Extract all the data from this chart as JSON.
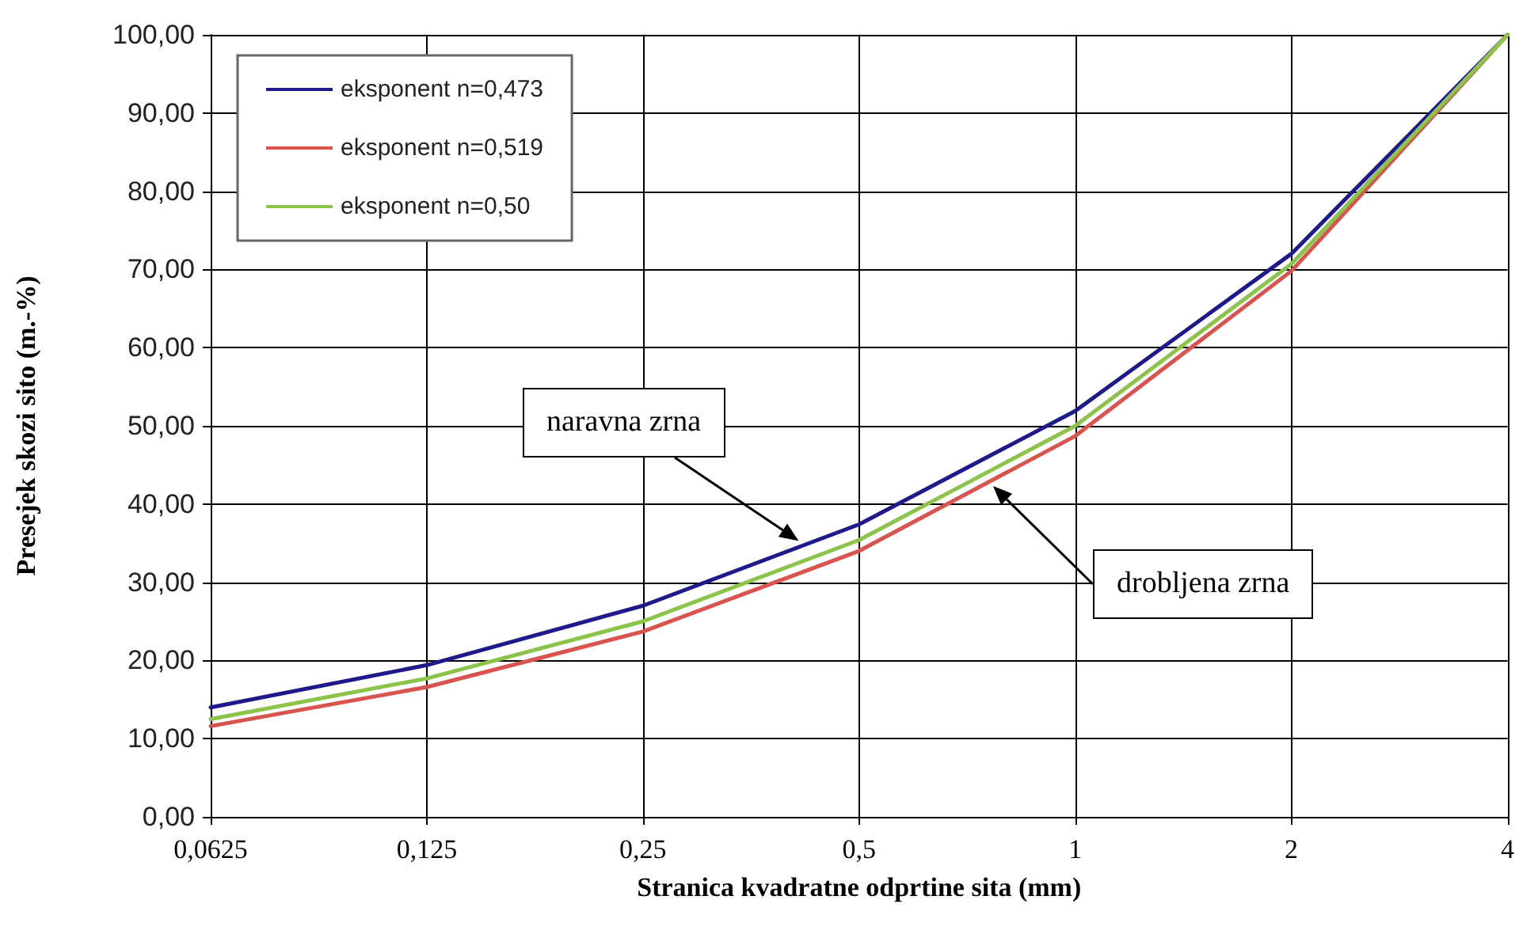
{
  "chart_data": {
    "type": "line",
    "xlabel": "Stranica kvadratne odprtine sita (mm)",
    "ylabel": "Presejek skozi sito (m.-%)",
    "categories": [
      "0,0625",
      "0,125",
      "0,25",
      "0,5",
      "1",
      "2",
      "4"
    ],
    "series": [
      {
        "name": "eksponent n=0,473",
        "color": "#1f1a8c",
        "values": [
          14.0,
          19.4,
          27.0,
          37.4,
          51.9,
          72.0,
          100
        ]
      },
      {
        "name": "eksponent n=0,519",
        "color": "#d9534f",
        "values": [
          11.6,
          16.6,
          23.7,
          34.0,
          48.7,
          69.8,
          100
        ]
      },
      {
        "name": "eksponent n=0,50",
        "color": "#8cc34a",
        "values": [
          12.5,
          17.7,
          25.0,
          35.4,
          50.0,
          70.7,
          100
        ]
      }
    ],
    "ylim": [
      0,
      100
    ],
    "yticks": [
      {
        "value": 0,
        "label": "0,00"
      },
      {
        "value": 10,
        "label": "10,00"
      },
      {
        "value": 20,
        "label": "20,00"
      },
      {
        "value": 30,
        "label": "30,00"
      },
      {
        "value": 40,
        "label": "40,00"
      },
      {
        "value": 50,
        "label": "50,00"
      },
      {
        "value": 60,
        "label": "60,00"
      },
      {
        "value": 70,
        "label": "70,00"
      },
      {
        "value": 80,
        "label": "80,00"
      },
      {
        "value": 90,
        "label": "90,00"
      },
      {
        "value": 100,
        "label": "100,00"
      }
    ],
    "annotations": [
      "naravna zrna",
      "drobljena zrna"
    ],
    "grid": true,
    "legend": "top left",
    "marker": "none",
    "line_style": "solid"
  }
}
